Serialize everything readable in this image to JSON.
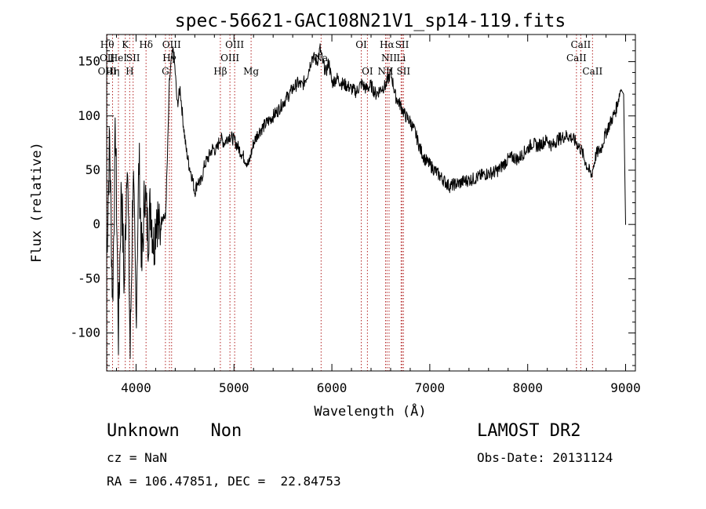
{
  "chart_data": {
    "type": "line",
    "title": "spec-56621-GAC108N21V1_sp14-119.fits",
    "xlabel": "Wavelength (Å)",
    "ylabel": "Flux (relative)",
    "xlim": [
      3700,
      9100
    ],
    "ylim": [
      -135,
      175
    ],
    "x_ticks": [
      4000,
      5000,
      6000,
      7000,
      8000,
      9000
    ],
    "y_ticks": [
      -100,
      -50,
      0,
      50,
      100,
      150
    ],
    "grid": false,
    "series": [
      {
        "color": "#000000",
        "x": [
          3700,
          3730,
          3760,
          3790,
          3820,
          3850,
          3880,
          3910,
          3940,
          3970,
          4000,
          4030,
          4060,
          4090,
          4120,
          4150,
          4180,
          4210,
          4240,
          4270,
          4300,
          4320,
          4340,
          4360,
          4380,
          4400,
          4420,
          4450,
          4480,
          4510,
          4540,
          4570,
          4600,
          4630,
          4660,
          4700,
          4740,
          4780,
          4820,
          4860,
          4900,
          4950,
          5000,
          5050,
          5100,
          5150,
          5200,
          5250,
          5300,
          5350,
          5400,
          5450,
          5500,
          5550,
          5600,
          5650,
          5700,
          5750,
          5800,
          5850,
          5880,
          5910,
          5940,
          5970,
          6000,
          6050,
          6100,
          6150,
          6200,
          6250,
          6300,
          6350,
          6400,
          6450,
          6500,
          6550,
          6600,
          6620,
          6650,
          6700,
          6750,
          6800,
          6850,
          6900,
          6950,
          7000,
          7050,
          7100,
          7150,
          7200,
          7250,
          7300,
          7350,
          7400,
          7450,
          7500,
          7550,
          7600,
          7650,
          7700,
          7750,
          7800,
          7850,
          7900,
          7950,
          8000,
          8050,
          8100,
          8150,
          8200,
          8250,
          8300,
          8350,
          8400,
          8450,
          8500,
          8550,
          8600,
          8650,
          8700,
          8750,
          8800,
          8850,
          8900,
          8950,
          8980,
          9000,
          9003
        ],
        "y": [
          -30,
          80,
          -70,
          90,
          -100,
          40,
          -60,
          75,
          -120,
          50,
          -85,
          60,
          -40,
          35,
          -10,
          20,
          -20,
          15,
          -10,
          10,
          5,
          60,
          130,
          150,
          162,
          140,
          110,
          125,
          95,
          70,
          55,
          45,
          30,
          40,
          38,
          55,
          62,
          70,
          68,
          80,
          75,
          82,
          78,
          70,
          62,
          55,
          75,
          85,
          90,
          95,
          100,
          105,
          112,
          118,
          125,
          130,
          128,
          138,
          155,
          150,
          162,
          148,
          140,
          150,
          130,
          135,
          130,
          128,
          125,
          122,
          130,
          125,
          128,
          120,
          125,
          128,
          140,
          132,
          118,
          110,
          100,
          95,
          85,
          70,
          60,
          55,
          50,
          45,
          40,
          35,
          37,
          38,
          40,
          41,
          42,
          44,
          46,
          47,
          48,
          50,
          55,
          60,
          62,
          60,
          65,
          70,
          75,
          72,
          75,
          78,
          72,
          78,
          80,
          82,
          80,
          75,
          68,
          55,
          45,
          65,
          70,
          85,
          95,
          105,
          125,
          120,
          0,
          0
        ]
      }
    ],
    "lines": [
      {
        "x": 3705,
        "labels": [
          "Hθ",
          "OII",
          "OIII"
        ]
      },
      {
        "x": 3760,
        "labels": [
          "",
          "",
          "Hη"
        ]
      },
      {
        "x": 3820,
        "labels": [
          "",
          "HeI",
          ""
        ]
      },
      {
        "x": 3890,
        "labels": [
          "K",
          "",
          ""
        ]
      },
      {
        "x": 3935,
        "labels": [
          "",
          "",
          "H"
        ]
      },
      {
        "x": 3970,
        "labels": [
          "",
          "SII",
          ""
        ]
      },
      {
        "x": 4102,
        "labels": [
          "Hδ",
          "",
          ""
        ]
      },
      {
        "x": 4300,
        "labels": [
          "",
          "",
          "G"
        ]
      },
      {
        "x": 4341,
        "labels": [
          "",
          "Hγ",
          ""
        ]
      },
      {
        "x": 4363,
        "labels": [
          "OIII",
          "",
          ""
        ]
      },
      {
        "x": 4861,
        "labels": [
          "",
          "",
          "Hβ"
        ]
      },
      {
        "x": 4959,
        "labels": [
          "",
          "OIII",
          ""
        ]
      },
      {
        "x": 5007,
        "labels": [
          "OIII",
          "",
          ""
        ]
      },
      {
        "x": 5175,
        "labels": [
          "",
          "",
          "Mg"
        ]
      },
      {
        "x": 5890,
        "labels": [
          "",
          "Na",
          ""
        ]
      },
      {
        "x": 6300,
        "labels": [
          "OI",
          "",
          ""
        ]
      },
      {
        "x": 6363,
        "labels": [
          "",
          "",
          "OI"
        ]
      },
      {
        "x": 6548,
        "labels": [
          "",
          "",
          "NII"
        ]
      },
      {
        "x": 6563,
        "labels": [
          "Hα",
          "",
          ""
        ]
      },
      {
        "x": 6584,
        "labels": [
          "",
          "NII",
          ""
        ]
      },
      {
        "x": 6707,
        "labels": [
          "",
          "Li",
          ""
        ]
      },
      {
        "x": 6717,
        "labels": [
          "SII",
          "",
          ""
        ]
      },
      {
        "x": 6731,
        "labels": [
          "",
          "",
          "SII"
        ]
      },
      {
        "x": 8498,
        "labels": [
          "",
          "CaII",
          ""
        ]
      },
      {
        "x": 8542,
        "labels": [
          "CaII",
          "",
          ""
        ]
      },
      {
        "x": 8662,
        "labels": [
          "",
          "",
          "CaII"
        ]
      }
    ]
  },
  "info": {
    "class_line": "Unknown   Non",
    "survey": "LAMOST DR2",
    "cz_line": "cz = NaN",
    "obs_line": "Obs-Date: 20131124",
    "radec_line": "RA = 106.47851, DEC =  22.84753"
  }
}
